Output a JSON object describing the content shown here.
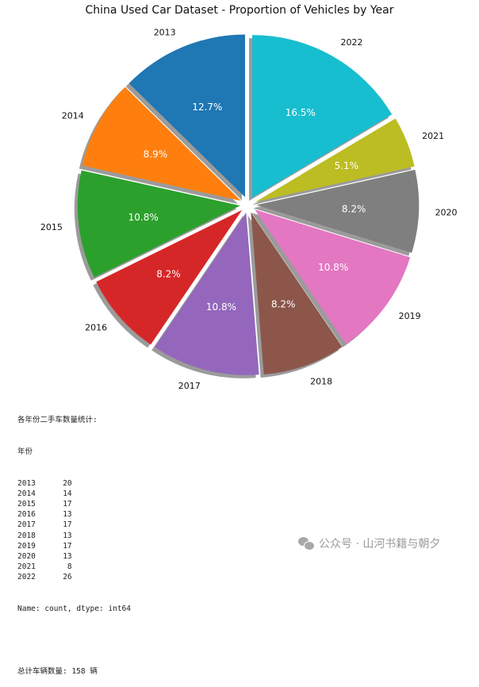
{
  "chart_data": {
    "type": "pie",
    "title": "China Used Car Dataset - Proportion of Vehicles by Year",
    "categories": [
      "2013",
      "2014",
      "2015",
      "2016",
      "2017",
      "2018",
      "2019",
      "2020",
      "2021",
      "2022"
    ],
    "values": [
      20,
      14,
      17,
      13,
      17,
      13,
      17,
      13,
      8,
      26
    ],
    "percent_labels": [
      "12.7%",
      "8.9%",
      "10.8%",
      "8.2%",
      "10.8%",
      "8.2%",
      "10.8%",
      "8.2%",
      "5.1%",
      "16.5%"
    ],
    "colors": [
      "#1f77b4",
      "#ff7f0e",
      "#2ca02c",
      "#d62728",
      "#9467bd",
      "#8c564b",
      "#e377c2",
      "#7f7f7f",
      "#bcbd22",
      "#17becf"
    ],
    "start_angle": 90,
    "direction": "counterclockwise",
    "explode": 0.05,
    "shadow": true
  },
  "output": {
    "heading": "各年份二手车数量统计:",
    "index_name": "年份",
    "rows": [
      {
        "year": "2013",
        "count": "20"
      },
      {
        "year": "2014",
        "count": "14"
      },
      {
        "year": "2015",
        "count": "17"
      },
      {
        "year": "2016",
        "count": "13"
      },
      {
        "year": "2017",
        "count": "17"
      },
      {
        "year": "2018",
        "count": "13"
      },
      {
        "year": "2019",
        "count": "17"
      },
      {
        "year": "2020",
        "count": "13"
      },
      {
        "year": "2021",
        "count": "8"
      },
      {
        "year": "2022",
        "count": "26"
      }
    ],
    "dtype_line": "Name: count, dtype: int64",
    "total_line": "总计车辆数量: 158 辆"
  },
  "watermark": {
    "text": "公众号 · 山河书籍与朝夕",
    "icon": "wechat-icon"
  }
}
